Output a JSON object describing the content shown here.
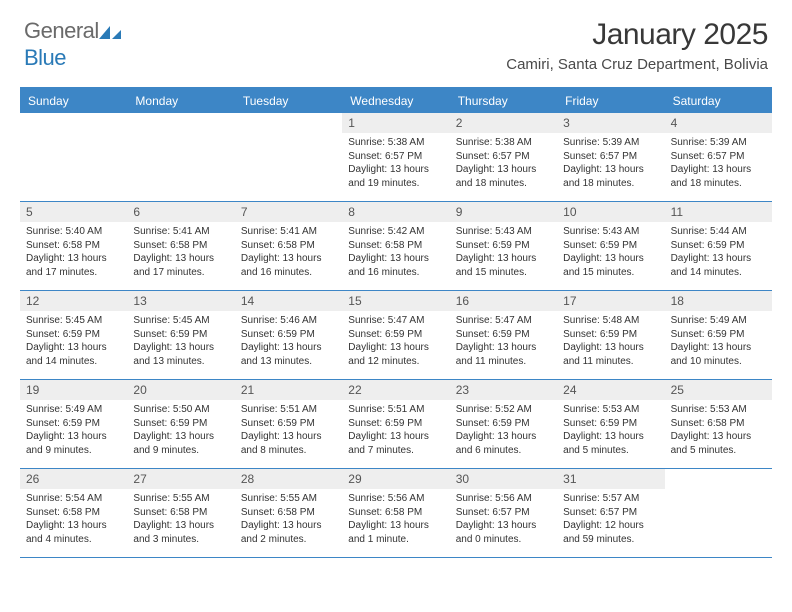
{
  "brand": {
    "part1": "General",
    "part2": "Blue"
  },
  "title": "January 2025",
  "location": "Camiri, Santa Cruz Department, Bolivia",
  "colors": {
    "header_bg": "#3d86c6",
    "header_text": "#ffffff",
    "daynum_bg": "#eeeeee",
    "border": "#3d86c6",
    "text": "#333333",
    "brand_gray": "#6a6a6a",
    "brand_blue": "#2a7ab7"
  },
  "day_names": [
    "Sunday",
    "Monday",
    "Tuesday",
    "Wednesday",
    "Thursday",
    "Friday",
    "Saturday"
  ],
  "weeks": [
    [
      null,
      null,
      null,
      {
        "n": "1",
        "sunrise": "Sunrise: 5:38 AM",
        "sunset": "Sunset: 6:57 PM",
        "daylight": "Daylight: 13 hours and 19 minutes."
      },
      {
        "n": "2",
        "sunrise": "Sunrise: 5:38 AM",
        "sunset": "Sunset: 6:57 PM",
        "daylight": "Daylight: 13 hours and 18 minutes."
      },
      {
        "n": "3",
        "sunrise": "Sunrise: 5:39 AM",
        "sunset": "Sunset: 6:57 PM",
        "daylight": "Daylight: 13 hours and 18 minutes."
      },
      {
        "n": "4",
        "sunrise": "Sunrise: 5:39 AM",
        "sunset": "Sunset: 6:57 PM",
        "daylight": "Daylight: 13 hours and 18 minutes."
      }
    ],
    [
      {
        "n": "5",
        "sunrise": "Sunrise: 5:40 AM",
        "sunset": "Sunset: 6:58 PM",
        "daylight": "Daylight: 13 hours and 17 minutes."
      },
      {
        "n": "6",
        "sunrise": "Sunrise: 5:41 AM",
        "sunset": "Sunset: 6:58 PM",
        "daylight": "Daylight: 13 hours and 17 minutes."
      },
      {
        "n": "7",
        "sunrise": "Sunrise: 5:41 AM",
        "sunset": "Sunset: 6:58 PM",
        "daylight": "Daylight: 13 hours and 16 minutes."
      },
      {
        "n": "8",
        "sunrise": "Sunrise: 5:42 AM",
        "sunset": "Sunset: 6:58 PM",
        "daylight": "Daylight: 13 hours and 16 minutes."
      },
      {
        "n": "9",
        "sunrise": "Sunrise: 5:43 AM",
        "sunset": "Sunset: 6:59 PM",
        "daylight": "Daylight: 13 hours and 15 minutes."
      },
      {
        "n": "10",
        "sunrise": "Sunrise: 5:43 AM",
        "sunset": "Sunset: 6:59 PM",
        "daylight": "Daylight: 13 hours and 15 minutes."
      },
      {
        "n": "11",
        "sunrise": "Sunrise: 5:44 AM",
        "sunset": "Sunset: 6:59 PM",
        "daylight": "Daylight: 13 hours and 14 minutes."
      }
    ],
    [
      {
        "n": "12",
        "sunrise": "Sunrise: 5:45 AM",
        "sunset": "Sunset: 6:59 PM",
        "daylight": "Daylight: 13 hours and 14 minutes."
      },
      {
        "n": "13",
        "sunrise": "Sunrise: 5:45 AM",
        "sunset": "Sunset: 6:59 PM",
        "daylight": "Daylight: 13 hours and 13 minutes."
      },
      {
        "n": "14",
        "sunrise": "Sunrise: 5:46 AM",
        "sunset": "Sunset: 6:59 PM",
        "daylight": "Daylight: 13 hours and 13 minutes."
      },
      {
        "n": "15",
        "sunrise": "Sunrise: 5:47 AM",
        "sunset": "Sunset: 6:59 PM",
        "daylight": "Daylight: 13 hours and 12 minutes."
      },
      {
        "n": "16",
        "sunrise": "Sunrise: 5:47 AM",
        "sunset": "Sunset: 6:59 PM",
        "daylight": "Daylight: 13 hours and 11 minutes."
      },
      {
        "n": "17",
        "sunrise": "Sunrise: 5:48 AM",
        "sunset": "Sunset: 6:59 PM",
        "daylight": "Daylight: 13 hours and 11 minutes."
      },
      {
        "n": "18",
        "sunrise": "Sunrise: 5:49 AM",
        "sunset": "Sunset: 6:59 PM",
        "daylight": "Daylight: 13 hours and 10 minutes."
      }
    ],
    [
      {
        "n": "19",
        "sunrise": "Sunrise: 5:49 AM",
        "sunset": "Sunset: 6:59 PM",
        "daylight": "Daylight: 13 hours and 9 minutes."
      },
      {
        "n": "20",
        "sunrise": "Sunrise: 5:50 AM",
        "sunset": "Sunset: 6:59 PM",
        "daylight": "Daylight: 13 hours and 9 minutes."
      },
      {
        "n": "21",
        "sunrise": "Sunrise: 5:51 AM",
        "sunset": "Sunset: 6:59 PM",
        "daylight": "Daylight: 13 hours and 8 minutes."
      },
      {
        "n": "22",
        "sunrise": "Sunrise: 5:51 AM",
        "sunset": "Sunset: 6:59 PM",
        "daylight": "Daylight: 13 hours and 7 minutes."
      },
      {
        "n": "23",
        "sunrise": "Sunrise: 5:52 AM",
        "sunset": "Sunset: 6:59 PM",
        "daylight": "Daylight: 13 hours and 6 minutes."
      },
      {
        "n": "24",
        "sunrise": "Sunrise: 5:53 AM",
        "sunset": "Sunset: 6:59 PM",
        "daylight": "Daylight: 13 hours and 5 minutes."
      },
      {
        "n": "25",
        "sunrise": "Sunrise: 5:53 AM",
        "sunset": "Sunset: 6:58 PM",
        "daylight": "Daylight: 13 hours and 5 minutes."
      }
    ],
    [
      {
        "n": "26",
        "sunrise": "Sunrise: 5:54 AM",
        "sunset": "Sunset: 6:58 PM",
        "daylight": "Daylight: 13 hours and 4 minutes."
      },
      {
        "n": "27",
        "sunrise": "Sunrise: 5:55 AM",
        "sunset": "Sunset: 6:58 PM",
        "daylight": "Daylight: 13 hours and 3 minutes."
      },
      {
        "n": "28",
        "sunrise": "Sunrise: 5:55 AM",
        "sunset": "Sunset: 6:58 PM",
        "daylight": "Daylight: 13 hours and 2 minutes."
      },
      {
        "n": "29",
        "sunrise": "Sunrise: 5:56 AM",
        "sunset": "Sunset: 6:58 PM",
        "daylight": "Daylight: 13 hours and 1 minute."
      },
      {
        "n": "30",
        "sunrise": "Sunrise: 5:56 AM",
        "sunset": "Sunset: 6:57 PM",
        "daylight": "Daylight: 13 hours and 0 minutes."
      },
      {
        "n": "31",
        "sunrise": "Sunrise: 5:57 AM",
        "sunset": "Sunset: 6:57 PM",
        "daylight": "Daylight: 12 hours and 59 minutes."
      },
      null
    ]
  ]
}
